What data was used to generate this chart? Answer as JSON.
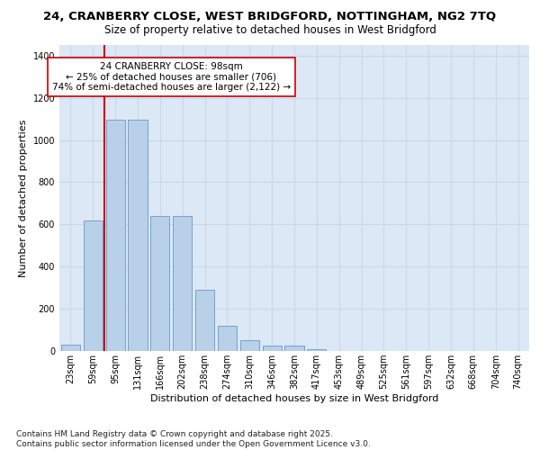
{
  "title1": "24, CRANBERRY CLOSE, WEST BRIDGFORD, NOTTINGHAM, NG2 7TQ",
  "title2": "Size of property relative to detached houses in West Bridgford",
  "xlabel": "Distribution of detached houses by size in West Bridgford",
  "ylabel": "Number of detached properties",
  "categories": [
    "23sqm",
    "59sqm",
    "95sqm",
    "131sqm",
    "166sqm",
    "202sqm",
    "238sqm",
    "274sqm",
    "310sqm",
    "346sqm",
    "382sqm",
    "417sqm",
    "453sqm",
    "489sqm",
    "525sqm",
    "561sqm",
    "597sqm",
    "632sqm",
    "668sqm",
    "704sqm",
    "740sqm"
  ],
  "values": [
    30,
    620,
    1095,
    1095,
    640,
    640,
    290,
    120,
    50,
    25,
    25,
    10,
    0,
    0,
    0,
    0,
    0,
    0,
    0,
    0,
    0
  ],
  "bar_color": "#b8d0e8",
  "bar_edge_color": "#6699cc",
  "vline_index": 2,
  "vline_color": "#cc0000",
  "annotation_text": "24 CRANBERRY CLOSE: 98sqm\n← 25% of detached houses are smaller (706)\n74% of semi-detached houses are larger (2,122) →",
  "annotation_box_color": "#ffffff",
  "annotation_box_edge": "#cc0000",
  "ylim": [
    0,
    1450
  ],
  "yticks": [
    0,
    200,
    400,
    600,
    800,
    1000,
    1200,
    1400
  ],
  "grid_color": "#c8d8ec",
  "bg_color": "#dce8f5",
  "footer": "Contains HM Land Registry data © Crown copyright and database right 2025.\nContains public sector information licensed under the Open Government Licence v3.0.",
  "title_fontsize": 9.5,
  "subtitle_fontsize": 8.5,
  "axis_label_fontsize": 8,
  "tick_fontsize": 7,
  "annotation_fontsize": 7.5,
  "footer_fontsize": 6.5
}
